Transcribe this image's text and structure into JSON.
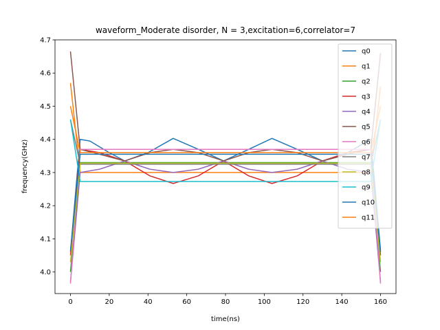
{
  "chart_data": {
    "type": "line",
    "title": "waveform_Moderate disorder, N =  3,excitation=6,correlator=7",
    "xlabel": "time(ns)",
    "ylabel": "frequency(GHz)",
    "xlim": [
      -8,
      168
    ],
    "ylim": [
      3.935,
      4.7
    ],
    "xticks": [
      0,
      20,
      40,
      60,
      80,
      100,
      120,
      140,
      160
    ],
    "yticks": [
      4.0,
      4.1,
      4.2,
      4.3,
      4.4,
      4.5,
      4.6,
      4.7
    ],
    "xtick_labels": [
      "0",
      "20",
      "40",
      "60",
      "80",
      "100",
      "120",
      "140",
      "160"
    ],
    "ytick_labels": [
      "4.0",
      "4.1",
      "4.2",
      "4.3",
      "4.4",
      "4.5",
      "4.6",
      "4.7"
    ],
    "legend_position": "top-right",
    "grid": false,
    "series": [
      {
        "name": "q0",
        "color": "#1f77b4",
        "x": [
          0,
          5,
          10,
          20,
          28,
          40,
          53,
          66,
          79,
          92,
          104,
          117,
          130,
          140,
          155,
          160
        ],
        "y": [
          4.06,
          4.4,
          4.395,
          4.36,
          4.335,
          4.36,
          4.403,
          4.37,
          4.335,
          4.37,
          4.403,
          4.37,
          4.335,
          4.35,
          4.4,
          4.065
        ]
      },
      {
        "name": "q1",
        "color": "#ff7f0e",
        "x": [
          0,
          5,
          155,
          160
        ],
        "y": [
          4.57,
          4.3,
          4.3,
          4.56
        ]
      },
      {
        "name": "q2",
        "color": "#2ca02c",
        "x": [
          0,
          5,
          155,
          160
        ],
        "y": [
          4.0,
          4.33,
          4.33,
          4.0
        ]
      },
      {
        "name": "q3",
        "color": "#d62728",
        "x": [
          0,
          5,
          15,
          28,
          41,
          53,
          66,
          79,
          92,
          104,
          117,
          130,
          143,
          155,
          160
        ],
        "y": [
          4.05,
          4.37,
          4.36,
          4.335,
          4.29,
          4.267,
          4.29,
          4.335,
          4.29,
          4.267,
          4.29,
          4.335,
          4.36,
          4.37,
          4.05
        ]
      },
      {
        "name": "q4",
        "color": "#9467bd",
        "x": [
          0,
          5,
          15,
          28,
          41,
          53,
          66,
          79,
          92,
          104,
          117,
          130,
          143,
          155,
          160
        ],
        "y": [
          3.97,
          4.3,
          4.31,
          4.335,
          4.31,
          4.3,
          4.31,
          4.335,
          4.31,
          4.3,
          4.31,
          4.335,
          4.31,
          4.3,
          3.97
        ]
      },
      {
        "name": "q5",
        "color": "#8c564b",
        "x": [
          0,
          5,
          15,
          28,
          41,
          53,
          66,
          79,
          92,
          104,
          117,
          130,
          143,
          155,
          160
        ],
        "y": [
          4.665,
          4.37,
          4.355,
          4.335,
          4.36,
          4.37,
          4.36,
          4.335,
          4.36,
          4.37,
          4.36,
          4.335,
          4.355,
          4.37,
          4.66
        ]
      },
      {
        "name": "q6",
        "color": "#e377c2",
        "x": [
          0,
          5,
          155,
          160
        ],
        "y": [
          3.965,
          4.37,
          4.37,
          3.965
        ]
      },
      {
        "name": "q7",
        "color": "#7f7f7f",
        "x": [
          0,
          5,
          155,
          160
        ],
        "y": [
          4.46,
          4.325,
          4.325,
          4.46
        ]
      },
      {
        "name": "q8",
        "color": "#bcbd22",
        "x": [
          0,
          5,
          155,
          160
        ],
        "y": [
          4.03,
          4.328,
          4.328,
          4.03
        ]
      },
      {
        "name": "q9",
        "color": "#17becf",
        "x": [
          0,
          5,
          155,
          160
        ],
        "y": [
          4.46,
          4.273,
          4.273,
          4.46
        ]
      },
      {
        "name": "q10",
        "color": "#1f77b4",
        "x": [
          0,
          5,
          155,
          160
        ],
        "y": [
          4.065,
          4.355,
          4.355,
          4.06
        ]
      },
      {
        "name": "q11",
        "color": "#ff7f0e",
        "x": [
          0,
          5,
          155,
          160
        ],
        "y": [
          4.5,
          4.36,
          4.36,
          4.5
        ]
      }
    ]
  }
}
